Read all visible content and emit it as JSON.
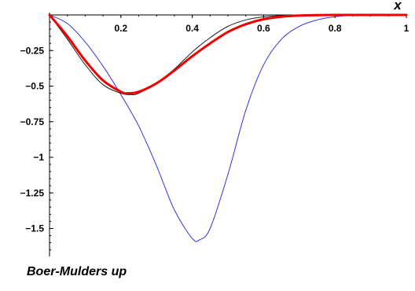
{
  "caption": "Boer-Mulders up",
  "chart_data": {
    "type": "line",
    "title": "",
    "xlabel": "x",
    "ylabel": "",
    "xlim": [
      0,
      1
    ],
    "ylim": [
      -1.75,
      0
    ],
    "x_ticks": [
      0.2,
      0.4,
      0.6,
      0.8,
      1
    ],
    "x_tick_labels": [
      "0.2",
      "0.4",
      "0.6",
      "0.8",
      "1"
    ],
    "y_ticks": [
      -0.25,
      -0.5,
      -0.75,
      -1,
      -1.25,
      -1.5
    ],
    "y_tick_labels": [
      "-0.25",
      "-0.5",
      "-0.75",
      "-1",
      "-1.25",
      "-1.5"
    ],
    "grid": false,
    "legend": "none",
    "series": [
      {
        "color": "#3333dd",
        "stroke": "thin",
        "x": [
          0,
          0.05,
          0.1,
          0.15,
          0.2,
          0.25,
          0.3,
          0.35,
          0.4,
          0.42,
          0.45,
          0.5,
          0.55,
          0.6,
          0.65,
          0.7,
          0.75,
          0.8,
          0.85,
          0.9,
          1
        ],
        "y": [
          0,
          -0.06,
          -0.19,
          -0.36,
          -0.56,
          -0.78,
          -1.06,
          -1.37,
          -1.57,
          -1.58,
          -1.5,
          -1.12,
          -0.67,
          -0.35,
          -0.17,
          -0.08,
          -0.035,
          -0.012,
          -0.003,
          0,
          0
        ]
      },
      {
        "color": "#222222",
        "stroke": "thin",
        "x": [
          0,
          0.05,
          0.1,
          0.15,
          0.2,
          0.23,
          0.25,
          0.3,
          0.35,
          0.4,
          0.45,
          0.5,
          0.55,
          0.6,
          0.65,
          0.7,
          0.75,
          0.8,
          1
        ],
        "y": [
          0,
          -0.17,
          -0.35,
          -0.49,
          -0.55,
          -0.56,
          -0.55,
          -0.48,
          -0.38,
          -0.26,
          -0.16,
          -0.08,
          -0.035,
          -0.013,
          -0.004,
          -0.001,
          0,
          0,
          0
        ]
      },
      {
        "color": "#ee0000",
        "stroke": "thick",
        "x": [
          0,
          0.05,
          0.1,
          0.15,
          0.2,
          0.22,
          0.25,
          0.3,
          0.35,
          0.4,
          0.45,
          0.5,
          0.55,
          0.6,
          0.65,
          0.7,
          0.75,
          0.8,
          1
        ],
        "y": [
          0,
          -0.15,
          -0.32,
          -0.46,
          -0.54,
          -0.55,
          -0.54,
          -0.48,
          -0.39,
          -0.29,
          -0.2,
          -0.12,
          -0.065,
          -0.03,
          -0.012,
          -0.004,
          -0.001,
          0,
          0
        ]
      }
    ]
  }
}
